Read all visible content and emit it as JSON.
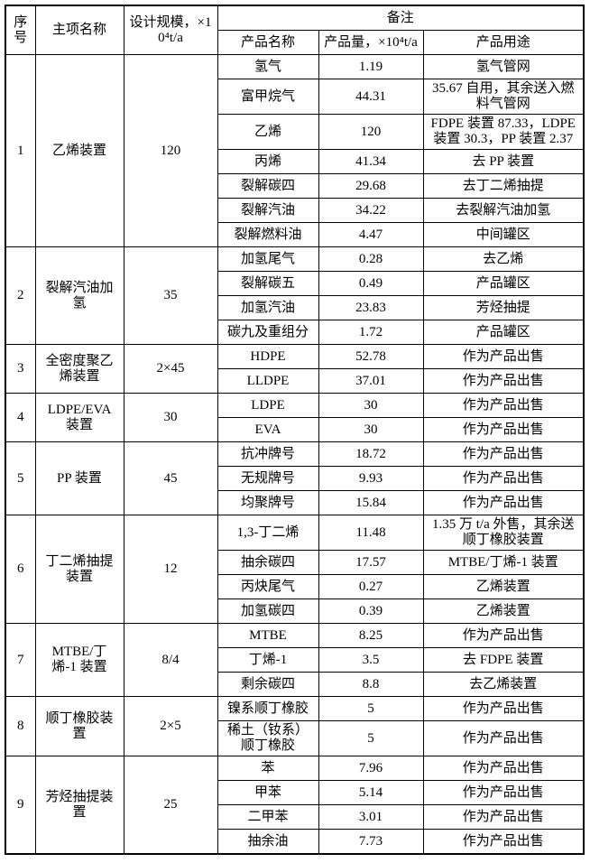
{
  "table": {
    "header": {
      "no": "序号",
      "name": "主项名称",
      "scale": "设计规模，×10⁴t/a",
      "remark": "备注",
      "product_name": "产品名称",
      "amount": "产品量，×10⁴t/a",
      "use": "产品用途"
    },
    "groups": [
      {
        "no": "1",
        "name": "乙烯装置",
        "scale": "120",
        "products": [
          {
            "name": "氢气",
            "amount": "1.19",
            "use": "氢气管网"
          },
          {
            "name": "富甲烷气",
            "amount": "44.31",
            "use": "35.67 自用，其余送入燃料气管网"
          },
          {
            "name": "乙烯",
            "amount": "120",
            "use": "FDPE 装置 87.33，LDPE 装置 30.3，PP 装置 2.37"
          },
          {
            "name": "丙烯",
            "amount": "41.34",
            "use": "去 PP 装置"
          },
          {
            "name": "裂解碳四",
            "amount": "29.68",
            "use": "去丁二烯抽提"
          },
          {
            "name": "裂解汽油",
            "amount": "34.22",
            "use": "去裂解汽油加氢"
          },
          {
            "name": "裂解燃料油",
            "amount": "4.47",
            "use": "中间罐区"
          }
        ]
      },
      {
        "no": "2",
        "name": "裂解汽油加氢",
        "scale": "35",
        "products": [
          {
            "name": "加氢尾气",
            "amount": "0.28",
            "use": "去乙烯"
          },
          {
            "name": "裂解碳五",
            "amount": "0.49",
            "use": "产品罐区"
          },
          {
            "name": "加氢汽油",
            "amount": "23.83",
            "use": "芳烃抽提"
          },
          {
            "name": "碳九及重组分",
            "amount": "1.72",
            "use": "产品罐区"
          }
        ]
      },
      {
        "no": "3",
        "name": "全密度聚乙烯装置",
        "scale": "2×45",
        "products": [
          {
            "name": "HDPE",
            "amount": "52.78",
            "use": "作为产品出售"
          },
          {
            "name": "LLDPE",
            "amount": "37.01",
            "use": "作为产品出售"
          }
        ]
      },
      {
        "no": "4",
        "name": "LDPE/EVA 装置",
        "scale": "30",
        "products": [
          {
            "name": "LDPE",
            "amount": "30",
            "use": "作为产品出售"
          },
          {
            "name": "EVA",
            "amount": "30",
            "use": "作为产品出售"
          }
        ]
      },
      {
        "no": "5",
        "name": "PP 装置",
        "scale": "45",
        "products": [
          {
            "name": "抗冲牌号",
            "amount": "18.72",
            "use": "作为产品出售"
          },
          {
            "name": "无规牌号",
            "amount": "9.93",
            "use": "作为产品出售"
          },
          {
            "name": "均聚牌号",
            "amount": "15.84",
            "use": "作为产品出售"
          }
        ]
      },
      {
        "no": "6",
        "name": "丁二烯抽提装置",
        "scale": "12",
        "products": [
          {
            "name": "1,3-丁二烯",
            "amount": "11.48",
            "use": "1.35 万 t/a 外售，其余送顺丁橡胶装置"
          },
          {
            "name": "抽余碳四",
            "amount": "17.57",
            "use": "MTBE/丁烯-1 装置"
          },
          {
            "name": "丙炔尾气",
            "amount": "0.27",
            "use": "乙烯装置"
          },
          {
            "name": "加氢碳四",
            "amount": "0.39",
            "use": "乙烯装置"
          }
        ]
      },
      {
        "no": "7",
        "name": "MTBE/丁烯-1 装置",
        "scale": "8/4",
        "products": [
          {
            "name": "MTBE",
            "amount": "8.25",
            "use": "作为产品出售"
          },
          {
            "name": "丁烯-1",
            "amount": "3.5",
            "use": "去 FDPE 装置"
          },
          {
            "name": "剩余碳四",
            "amount": "8.8",
            "use": "去乙烯装置"
          }
        ]
      },
      {
        "no": "8",
        "name": "顺丁橡胶装置",
        "scale": "2×5",
        "products": [
          {
            "name": "镍系顺丁橡胶",
            "amount": "5",
            "use": "作为产品出售"
          },
          {
            "name": "稀土（钕系）顺丁橡胶",
            "amount": "5",
            "use": "作为产品出售"
          }
        ]
      },
      {
        "no": "9",
        "name": "芳烃抽提装置",
        "scale": "25",
        "products": [
          {
            "name": "苯",
            "amount": "7.96",
            "use": "作为产品出售"
          },
          {
            "name": "甲苯",
            "amount": "5.14",
            "use": "作为产品出售"
          },
          {
            "name": "二甲苯",
            "amount": "3.01",
            "use": "作为产品出售"
          },
          {
            "name": "抽余油",
            "amount": "7.73",
            "use": "作为产品出售"
          }
        ]
      }
    ]
  }
}
